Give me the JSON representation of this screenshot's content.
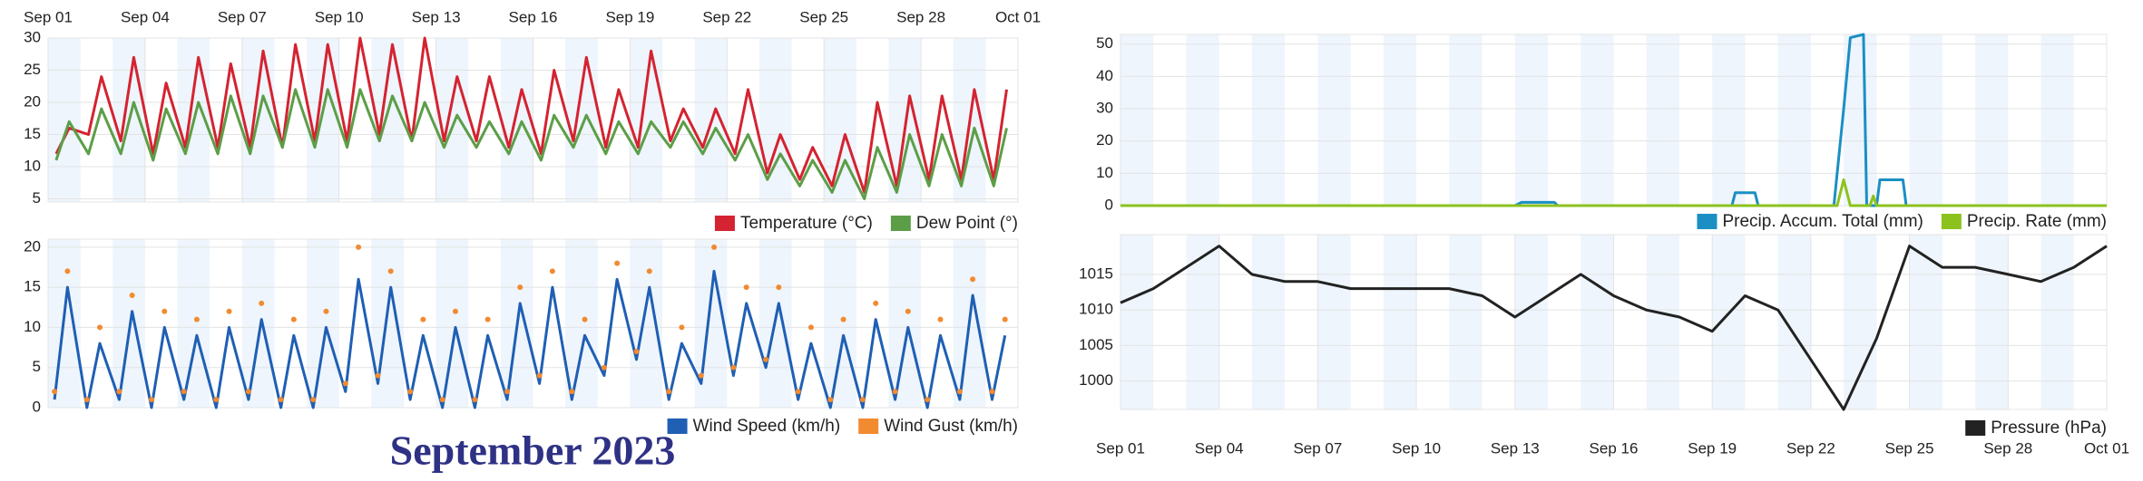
{
  "page_title": "September 2023",
  "chart_data": [
    {
      "type": "line",
      "legend": "bottom-right",
      "grid": true,
      "xlim": [
        0,
        30
      ],
      "ylim": [
        4.5,
        30
      ],
      "yticks": [
        5,
        10,
        15,
        20,
        25,
        30
      ],
      "xticks": [
        {
          "value": 0,
          "label": "Sep 01"
        },
        {
          "value": 3,
          "label": "Sep 04"
        },
        {
          "value": 6,
          "label": "Sep 07"
        },
        {
          "value": 9,
          "label": "Sep 10"
        },
        {
          "value": 12,
          "label": "Sep 13"
        },
        {
          "value": 15,
          "label": "Sep 16"
        },
        {
          "value": 18,
          "label": "Sep 19"
        },
        {
          "value": 21,
          "label": "Sep 22"
        },
        {
          "value": 24,
          "label": "Sep 25"
        },
        {
          "value": 27,
          "label": "Sep 28"
        },
        {
          "value": 30,
          "label": "Oct 01"
        }
      ],
      "series": [
        {
          "name": "Temperature (°C)",
          "color": "#d42331",
          "x": [
            0.25,
            0.65,
            1.25,
            1.65,
            2.25,
            2.65,
            3.25,
            3.65,
            4.25,
            4.65,
            5.25,
            5.65,
            6.25,
            6.65,
            7.25,
            7.65,
            8.25,
            8.65,
            9.25,
            9.65,
            10.25,
            10.65,
            11.25,
            11.65,
            12.25,
            12.65,
            13.25,
            13.65,
            14.25,
            14.65,
            15.25,
            15.65,
            16.25,
            16.65,
            17.25,
            17.65,
            18.25,
            18.65,
            19.25,
            19.65,
            20.25,
            20.65,
            21.25,
            21.65,
            22.25,
            22.65,
            23.25,
            23.65,
            24.25,
            24.65,
            25.25,
            25.65,
            26.25,
            26.65,
            27.25,
            27.65,
            28.25,
            28.65,
            29.25,
            29.65
          ],
          "values": [
            12,
            16,
            15,
            24,
            14,
            27,
            12,
            23,
            13,
            27,
            13,
            26,
            13,
            28,
            13,
            29,
            14,
            29,
            14,
            30,
            15,
            29,
            14,
            30,
            14,
            24,
            14,
            24,
            13,
            22,
            12,
            25,
            14,
            27,
            13,
            22,
            13,
            28,
            14,
            19,
            13,
            19,
            12,
            22,
            9,
            15,
            8,
            13,
            7,
            15,
            6,
            20,
            7,
            21,
            8,
            21,
            8,
            22,
            8,
            22
          ]
        },
        {
          "name": "Dew Point (°)",
          "color": "#5c9e48",
          "x": [
            0.25,
            0.65,
            1.25,
            1.65,
            2.25,
            2.65,
            3.25,
            3.65,
            4.25,
            4.65,
            5.25,
            5.65,
            6.25,
            6.65,
            7.25,
            7.65,
            8.25,
            8.65,
            9.25,
            9.65,
            10.25,
            10.65,
            11.25,
            11.65,
            12.25,
            12.65,
            13.25,
            13.65,
            14.25,
            14.65,
            15.25,
            15.65,
            16.25,
            16.65,
            17.25,
            17.65,
            18.25,
            18.65,
            19.25,
            19.65,
            20.25,
            20.65,
            21.25,
            21.65,
            22.25,
            22.65,
            23.25,
            23.65,
            24.25,
            24.65,
            25.25,
            25.65,
            26.25,
            26.65,
            27.25,
            27.65,
            28.25,
            28.65,
            29.25,
            29.65
          ],
          "values": [
            11,
            17,
            12,
            19,
            12,
            20,
            11,
            19,
            12,
            20,
            12,
            21,
            12,
            21,
            13,
            22,
            13,
            22,
            13,
            22,
            14,
            21,
            14,
            20,
            13,
            18,
            13,
            17,
            12,
            17,
            11,
            18,
            13,
            18,
            12,
            17,
            12,
            17,
            13,
            17,
            12,
            16,
            11,
            15,
            8,
            12,
            7,
            11,
            6,
            11,
            5,
            13,
            6,
            15,
            7,
            15,
            7,
            16,
            7,
            16
          ]
        }
      ]
    },
    {
      "type": "line",
      "legend": "bottom-right",
      "grid": true,
      "xlim": [
        0,
        30
      ],
      "ylim": [
        0,
        21
      ],
      "yticks": [
        0,
        5,
        10,
        15,
        20
      ],
      "series": [
        {
          "name": "Wind Speed (km/h)",
          "color": "#1f5fb4",
          "x": [
            0.2,
            0.6,
            1.2,
            1.6,
            2.2,
            2.6,
            3.2,
            3.6,
            4.2,
            4.6,
            5.2,
            5.6,
            6.2,
            6.6,
            7.2,
            7.6,
            8.2,
            8.6,
            9.2,
            9.6,
            10.2,
            10.6,
            11.2,
            11.6,
            12.2,
            12.6,
            13.2,
            13.6,
            14.2,
            14.6,
            15.2,
            15.6,
            16.2,
            16.6,
            17.2,
            17.6,
            18.2,
            18.6,
            19.2,
            19.6,
            20.2,
            20.6,
            21.2,
            21.6,
            22.2,
            22.6,
            23.2,
            23.6,
            24.2,
            24.6,
            25.2,
            25.6,
            26.2,
            26.6,
            27.2,
            27.6,
            28.2,
            28.6,
            29.2,
            29.6
          ],
          "values": [
            1,
            15,
            0,
            8,
            1,
            12,
            0,
            10,
            1,
            9,
            0,
            10,
            1,
            11,
            0,
            9,
            0,
            10,
            2,
            16,
            3,
            15,
            1,
            9,
            0,
            10,
            0,
            9,
            1,
            13,
            3,
            15,
            1,
            9,
            4,
            16,
            6,
            15,
            1,
            8,
            3,
            17,
            4,
            13,
            5,
            13,
            1,
            8,
            0,
            9,
            0,
            11,
            1,
            10,
            0,
            9,
            1,
            14,
            1,
            9
          ]
        },
        {
          "name": "Wind Gust (km/h)",
          "color": "#f28a30",
          "style": "markers",
          "x": [
            0.2,
            0.6,
            1.2,
            1.6,
            2.2,
            2.6,
            3.2,
            3.6,
            4.2,
            4.6,
            5.2,
            5.6,
            6.2,
            6.6,
            7.2,
            7.6,
            8.2,
            8.6,
            9.2,
            9.6,
            10.2,
            10.6,
            11.2,
            11.6,
            12.2,
            12.6,
            13.2,
            13.6,
            14.2,
            14.6,
            15.2,
            15.6,
            16.2,
            16.6,
            17.2,
            17.6,
            18.2,
            18.6,
            19.2,
            19.6,
            20.2,
            20.6,
            21.2,
            21.6,
            22.2,
            22.6,
            23.2,
            23.6,
            24.2,
            24.6,
            25.2,
            25.6,
            26.2,
            26.6,
            27.2,
            27.6,
            28.2,
            28.6,
            29.2,
            29.6
          ],
          "values": [
            2,
            17,
            1,
            10,
            2,
            14,
            1,
            12,
            2,
            11,
            1,
            12,
            2,
            13,
            1,
            11,
            1,
            12,
            3,
            20,
            4,
            17,
            2,
            11,
            1,
            12,
            1,
            11,
            2,
            15,
            4,
            17,
            2,
            11,
            5,
            18,
            7,
            17,
            2,
            10,
            4,
            20,
            5,
            15,
            6,
            15,
            2,
            10,
            1,
            11,
            1,
            13,
            2,
            12,
            1,
            11,
            2,
            16,
            2,
            11
          ]
        }
      ]
    },
    {
      "type": "line",
      "legend": "bottom-right",
      "grid": true,
      "xlim": [
        0,
        30
      ],
      "ylim": [
        0,
        53
      ],
      "yticks": [
        0,
        10,
        20,
        30,
        40,
        50
      ],
      "series": [
        {
          "name": "Precip. Accum. Total (mm)",
          "color": "#1b8fc4",
          "x": [
            0,
            12,
            12.2,
            13.2,
            13.3,
            18.6,
            18.7,
            19.3,
            19.4,
            21.7,
            22.0,
            22.2,
            22.6,
            22.7,
            23.0,
            23.1,
            23.8,
            23.9,
            30
          ],
          "values": [
            0,
            0,
            1,
            1,
            0,
            0,
            4,
            4,
            0,
            0,
            30,
            52,
            53,
            0,
            0,
            8,
            8,
            0,
            0
          ]
        },
        {
          "name": "Precip. Rate (mm)",
          "color": "#8cc21e",
          "x": [
            0,
            21.8,
            22.0,
            22.2,
            22.8,
            22.9,
            23.0,
            30
          ],
          "values": [
            0,
            0,
            8,
            0,
            0,
            3,
            0,
            0
          ]
        }
      ]
    },
    {
      "type": "line",
      "legend": "bottom-right",
      "grid": true,
      "xlim": [
        0,
        30
      ],
      "ylim": [
        996,
        1020.6
      ],
      "yticks": [
        1000,
        1005,
        1010,
        1015
      ],
      "xticks": [
        {
          "value": 0,
          "label": "Sep 01"
        },
        {
          "value": 3,
          "label": "Sep 04"
        },
        {
          "value": 6,
          "label": "Sep 07"
        },
        {
          "value": 9,
          "label": "Sep 10"
        },
        {
          "value": 12,
          "label": "Sep 13"
        },
        {
          "value": 15,
          "label": "Sep 16"
        },
        {
          "value": 18,
          "label": "Sep 19"
        },
        {
          "value": 21,
          "label": "Sep 22"
        },
        {
          "value": 24,
          "label": "Sep 25"
        },
        {
          "value": 27,
          "label": "Sep 28"
        },
        {
          "value": 30,
          "label": "Oct 01"
        }
      ],
      "series": [
        {
          "name": "Pressure (hPa)",
          "color": "#222222",
          "x": [
            0,
            1,
            2,
            3,
            4,
            5,
            6,
            7,
            8,
            9,
            10,
            11,
            12,
            13,
            14,
            15,
            16,
            17,
            18,
            19,
            20,
            21,
            22,
            23,
            24,
            25,
            26,
            27,
            28,
            29,
            30
          ],
          "values": [
            1011,
            1013,
            1016,
            1019,
            1015,
            1014,
            1014,
            1013,
            1013,
            1013,
            1013,
            1012,
            1009,
            1012,
            1015,
            1012,
            1010,
            1009,
            1007,
            1012,
            1010,
            1003,
            996,
            1006,
            1019,
            1016,
            1016,
            1015,
            1014,
            1016,
            1019
          ]
        }
      ]
    }
  ]
}
